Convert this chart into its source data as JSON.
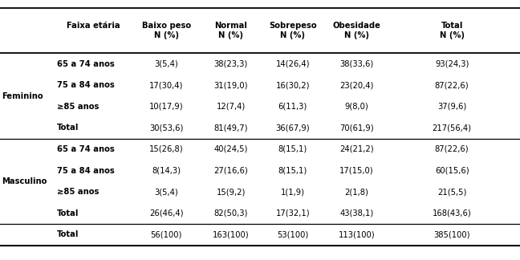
{
  "col_headers": [
    "Faixa etária",
    "Baixo peso\nN (%)",
    "Normal\nN (%)",
    "Sobrepeso\nN (%)",
    "Obesidade\nN (%)",
    "Total\nN (%)"
  ],
  "rows": [
    {
      "group": "Feminino",
      "label": "65 a 74 anos",
      "values": [
        "3(5,4)",
        "38(23,3)",
        "14(26,4)",
        "38(33,6)",
        "93(24,3)"
      ],
      "subtotal": false
    },
    {
      "group": "Feminino",
      "label": "75 a 84 anos",
      "values": [
        "17(30,4)",
        "31(19,0)",
        "16(30,2)",
        "23(20,4)",
        "87(22,6)"
      ],
      "subtotal": false
    },
    {
      "group": "Feminino",
      "label": "≥85 anos",
      "values": [
        "10(17,9)",
        "12(7,4)",
        "6(11,3)",
        "9(8,0)",
        "37(9,6)"
      ],
      "subtotal": false
    },
    {
      "group": "Feminino",
      "label": "Total",
      "values": [
        "30(53,6)",
        "81(49,7)",
        "36(67,9)",
        "70(61,9)",
        "217(56,4)"
      ],
      "subtotal": true
    },
    {
      "group": "Masculino",
      "label": "65 a 74 anos",
      "values": [
        "15(26,8)",
        "40(24,5)",
        "8(15,1)",
        "24(21,2)",
        "87(22,6)"
      ],
      "subtotal": false
    },
    {
      "group": "Masculino",
      "label": "75 a 84 anos",
      "values": [
        "8(14,3)",
        "27(16,6)",
        "8(15,1)",
        "17(15,0)",
        "60(15,6)"
      ],
      "subtotal": false
    },
    {
      "group": "Masculino",
      "label": "≥85 anos",
      "values": [
        "3(5,4)",
        "15(9,2)",
        "1(1,9)",
        "2(1,8)",
        "21(5,5)"
      ],
      "subtotal": false
    },
    {
      "group": "Masculino",
      "label": "Total",
      "values": [
        "26(46,4)",
        "82(50,3)",
        "17(32,1)",
        "43(38,1)",
        "168(43,6)"
      ],
      "subtotal": true
    },
    {
      "group": "",
      "label": "Total",
      "values": [
        "56(100)",
        "163(100)",
        "53(100)",
        "113(100)",
        "385(100)"
      ],
      "subtotal": true,
      "grandtotal": true
    }
  ],
  "figsize": [
    6.48,
    3.24
  ],
  "dpi": 100,
  "font_size": 7.2,
  "bg_color": "#ffffff"
}
